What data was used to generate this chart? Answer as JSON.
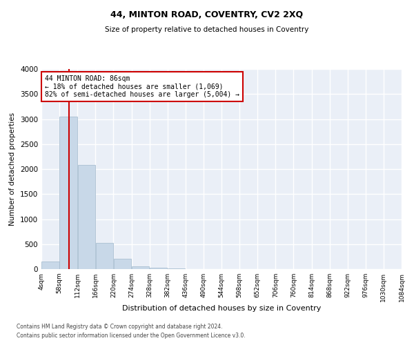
{
  "title": "44, MINTON ROAD, COVENTRY, CV2 2XQ",
  "subtitle": "Size of property relative to detached houses in Coventry",
  "xlabel": "Distribution of detached houses by size in Coventry",
  "ylabel": "Number of detached properties",
  "footnote1": "Contains HM Land Registry data © Crown copyright and database right 2024.",
  "footnote2": "Contains public sector information licensed under the Open Government Licence v3.0.",
  "bar_edges": [
    4,
    58,
    112,
    166,
    220,
    274,
    328,
    382,
    436,
    490,
    544,
    598,
    652,
    706,
    760,
    814,
    868,
    922,
    976,
    1030,
    1084
  ],
  "bar_values": [
    150,
    3050,
    2080,
    530,
    210,
    60,
    30,
    20,
    0,
    0,
    0,
    0,
    0,
    0,
    0,
    0,
    0,
    0,
    0,
    0
  ],
  "bar_color": "#c8d8e8",
  "bar_edge_color": "#a0b8cc",
  "property_size": 86,
  "vline_color": "#cc0000",
  "annotation_line1": "44 MINTON ROAD: 86sqm",
  "annotation_line2": "← 18% of detached houses are smaller (1,069)",
  "annotation_line3": "82% of semi-detached houses are larger (5,004) →",
  "annotation_box_color": "#cc0000",
  "ylim": [
    0,
    4000
  ],
  "yticks": [
    0,
    500,
    1000,
    1500,
    2000,
    2500,
    3000,
    3500,
    4000
  ],
  "background_color": "#eaeff7",
  "grid_color": "#ffffff",
  "tick_labels": [
    "4sqm",
    "58sqm",
    "112sqm",
    "166sqm",
    "220sqm",
    "274sqm",
    "328sqm",
    "382sqm",
    "436sqm",
    "490sqm",
    "544sqm",
    "598sqm",
    "652sqm",
    "706sqm",
    "760sqm",
    "814sqm",
    "868sqm",
    "922sqm",
    "976sqm",
    "1030sqm",
    "1084sqm"
  ]
}
